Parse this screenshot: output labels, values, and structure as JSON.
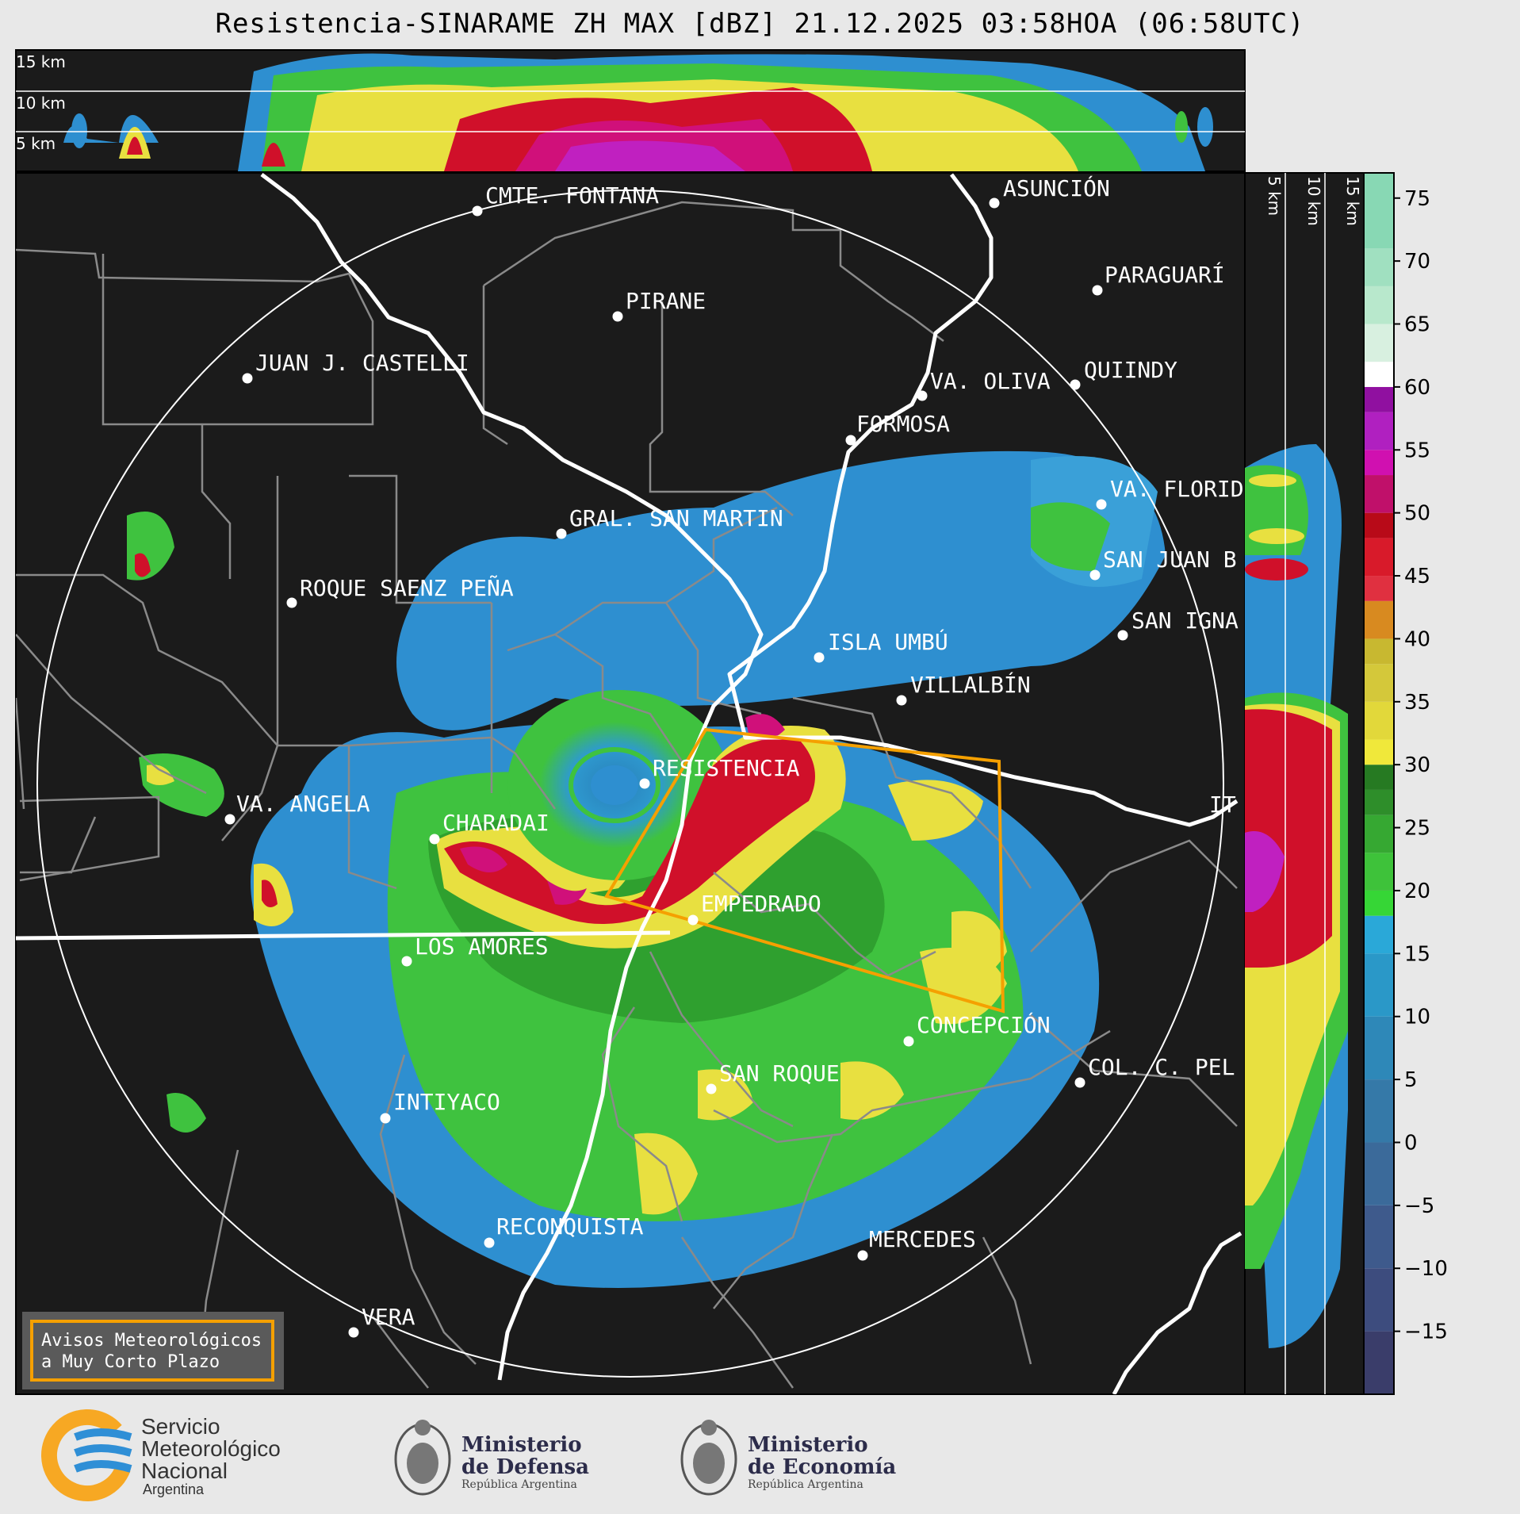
{
  "title": "Resistencia-SINARAME ZH MAX [dBZ] 21.12.2025 03:58HOA (06:58UTC)",
  "top_panel": {
    "height_labels": [
      "15 km",
      "10 km",
      "5 km"
    ]
  },
  "right_panel": {
    "height_labels": [
      "5 km",
      "10 km",
      "15 km"
    ]
  },
  "map": {
    "cities": [
      {
        "name": "CMTE. FONTANA"
      },
      {
        "name": "ASUNCIÓN"
      },
      {
        "name": "PIRANE"
      },
      {
        "name": "PARAGUARÍ"
      },
      {
        "name": "JUAN J. CASTELLI"
      },
      {
        "name": "VA. OLIVA"
      },
      {
        "name": "QUIINDY"
      },
      {
        "name": "FORMOSA"
      },
      {
        "name": "VA. FLORIDA"
      },
      {
        "name": "GRAL. SAN MARTIN"
      },
      {
        "name": "SAN JUAN B"
      },
      {
        "name": "ROQUE SAENZ PEÑA"
      },
      {
        "name": "SAN IGNA"
      },
      {
        "name": "ISLA UMBÚ"
      },
      {
        "name": "VILLALBÍN"
      },
      {
        "name": "RESISTENCIA"
      },
      {
        "name": "VA. ANGELA"
      },
      {
        "name": "CHARADAI"
      },
      {
        "name": "IT"
      },
      {
        "name": "EMPEDRADO"
      },
      {
        "name": "LOS AMORES"
      },
      {
        "name": "CONCEPCIÓN"
      },
      {
        "name": "SAN ROQUE"
      },
      {
        "name": "COL. C. PEL"
      },
      {
        "name": "INTIYACO"
      },
      {
        "name": "RECONQUISTA"
      },
      {
        "name": "MERCEDES"
      },
      {
        "name": "VERA"
      }
    ],
    "warning_box": {
      "line1": "Avisos Meteorológicos",
      "line2": "a Muy Corto Plazo"
    },
    "warning_polygon_color": "#f5a000"
  },
  "colorbar": {
    "unit": "dBZ",
    "ticks": [
      "75",
      "70",
      "65",
      "60",
      "55",
      "50",
      "45",
      "40",
      "35",
      "30",
      "25",
      "20",
      "15",
      "10",
      "5",
      "0",
      "−5",
      "−10",
      "−15"
    ]
  },
  "footer": {
    "smn": {
      "line1": "Servicio",
      "line2": "Meteorológico",
      "line3": "Nacional",
      "line4": "Argentina"
    },
    "defensa": {
      "line1": "Ministerio",
      "line2": "de Defensa",
      "line3": "República Argentina"
    },
    "economia": {
      "line1": "Ministerio",
      "line2": "de Economía",
      "line3": "República Argentina"
    }
  },
  "colors": {
    "background": "#1b1b1b",
    "page": "#e8e8e8",
    "range_ring": "#ffffff",
    "borders": "#8a8a8a",
    "rivers": "#ffffff",
    "smn_orange": "#f7a823",
    "smn_blue": "#2f8fd6"
  }
}
